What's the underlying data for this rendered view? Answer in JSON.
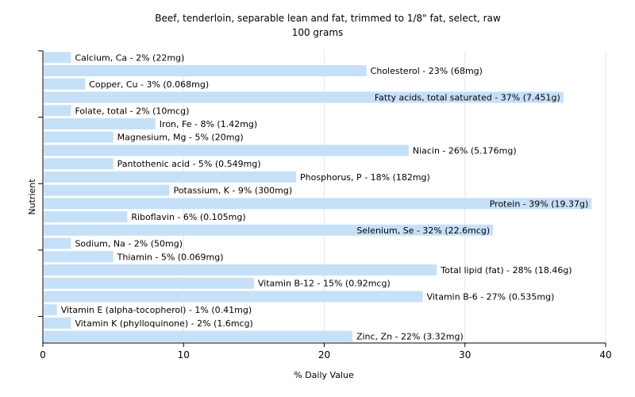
{
  "chart_data": {
    "type": "bar",
    "orientation": "horizontal",
    "title": "Beef, tenderloin, separable lean and fat, trimmed to 1/8\" fat, select, raw",
    "subtitle": "100 grams",
    "xlabel": "% Daily Value",
    "ylabel": "Nutrient",
    "xlim": [
      0,
      40
    ],
    "xticks": [
      0,
      10,
      20,
      30,
      40
    ],
    "grid": true,
    "bar_color": "#c6e0f8",
    "categories": [
      "Calcium, Ca",
      "Cholesterol",
      "Copper, Cu",
      "Fatty acids, total saturated",
      "Folate, total",
      "Iron, Fe",
      "Magnesium, Mg",
      "Niacin",
      "Pantothenic acid",
      "Phosphorus, P",
      "Potassium, K",
      "Protein",
      "Riboflavin",
      "Selenium, Se",
      "Sodium, Na",
      "Thiamin",
      "Total lipid (fat)",
      "Vitamin B-12",
      "Vitamin B-6",
      "Vitamin E (alpha-tocopherol)",
      "Vitamin K (phylloquinone)",
      "Zinc, Zn"
    ],
    "values": [
      2,
      23,
      3,
      37,
      2,
      8,
      5,
      26,
      5,
      18,
      9,
      39,
      6,
      32,
      2,
      5,
      28,
      15,
      27,
      1,
      2,
      22
    ],
    "bar_labels": [
      "Calcium, Ca - 2% (22mg)",
      "Cholesterol - 23% (68mg)",
      "Copper, Cu - 3% (0.068mg)",
      "Fatty acids, total saturated - 37% (7.451g)",
      "Folate, total - 2% (10mcg)",
      "Iron, Fe - 8% (1.42mg)",
      "Magnesium, Mg - 5% (20mg)",
      "Niacin - 26% (5.176mg)",
      "Pantothenic acid - 5% (0.549mg)",
      "Phosphorus, P - 18% (182mg)",
      "Potassium, K - 9% (300mg)",
      "Protein - 39% (19.37g)",
      "Riboflavin - 6% (0.105mg)",
      "Selenium, Se - 32% (22.6mcg)",
      "Sodium, Na - 2% (50mg)",
      "Thiamin - 5% (0.069mg)",
      "Total lipid (fat) - 28% (18.46g)",
      "Vitamin B-12 - 15% (0.92mcg)",
      "Vitamin B-6 - 27% (0.535mg)",
      "Vitamin E (alpha-tocopherol) - 1% (0.41mg)",
      "Vitamin K (phylloquinone) - 2% (1.6mcg)",
      "Zinc, Zn - 22% (3.32mg)"
    ]
  }
}
